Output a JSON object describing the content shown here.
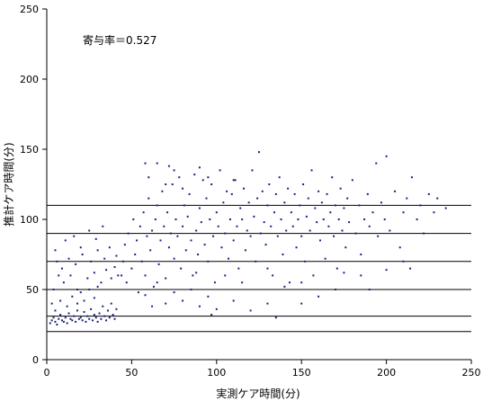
{
  "chart_data": {
    "type": "scatter",
    "title": "",
    "annotation": "寄与率＝0.527",
    "xlabel": "実測ケア時間(分)",
    "ylabel": "推計ケア時間(分)",
    "xlim": [
      0,
      250
    ],
    "ylim": [
      0,
      250
    ],
    "x_ticks": [
      0,
      50,
      100,
      150,
      200,
      250
    ],
    "y_ticks": [
      0,
      50,
      100,
      150,
      200,
      250
    ],
    "x_tick_labels": [
      "0",
      "50",
      "100",
      "150",
      "200",
      "250"
    ],
    "y_tick_labels": [
      "0",
      "50",
      "100",
      "150",
      "200",
      "250"
    ],
    "reference_lines_y": [
      20,
      31,
      50,
      70,
      90,
      110
    ],
    "grid": false,
    "legend": "none",
    "marker_color": "#1a237e",
    "series": [
      {
        "name": "",
        "points": [
          [
            2,
            26
          ],
          [
            3,
            28
          ],
          [
            4,
            30
          ],
          [
            5,
            27
          ],
          [
            6,
            25
          ],
          [
            7,
            29
          ],
          [
            8,
            32
          ],
          [
            9,
            28
          ],
          [
            10,
            27
          ],
          [
            11,
            30
          ],
          [
            12,
            26
          ],
          [
            13,
            33
          ],
          [
            14,
            29
          ],
          [
            15,
            28
          ],
          [
            16,
            31
          ],
          [
            17,
            27
          ],
          [
            18,
            35
          ],
          [
            19,
            29
          ],
          [
            20,
            30
          ],
          [
            21,
            28
          ],
          [
            22,
            34
          ],
          [
            23,
            27
          ],
          [
            24,
            31
          ],
          [
            25,
            29
          ],
          [
            26,
            36
          ],
          [
            27,
            28
          ],
          [
            28,
            32
          ],
          [
            29,
            30
          ],
          [
            30,
            27
          ],
          [
            31,
            33
          ],
          [
            32,
            29
          ],
          [
            33,
            38
          ],
          [
            34,
            31
          ],
          [
            35,
            28
          ],
          [
            36,
            35
          ],
          [
            37,
            30
          ],
          [
            38,
            40
          ],
          [
            39,
            32
          ],
          [
            40,
            29
          ],
          [
            41,
            36
          ],
          [
            5,
            35
          ],
          [
            8,
            42
          ],
          [
            12,
            38
          ],
          [
            15,
            45
          ],
          [
            18,
            40
          ],
          [
            20,
            48
          ],
          [
            22,
            42
          ],
          [
            25,
            50
          ],
          [
            28,
            44
          ],
          [
            30,
            52
          ],
          [
            10,
            55
          ],
          [
            14,
            60
          ],
          [
            18,
            50
          ],
          [
            24,
            58
          ],
          [
            28,
            62
          ],
          [
            32,
            55
          ],
          [
            35,
            64
          ],
          [
            38,
            58
          ],
          [
            40,
            66
          ],
          [
            42,
            60
          ],
          [
            6,
            70
          ],
          [
            9,
            65
          ],
          [
            13,
            72
          ],
          [
            17,
            68
          ],
          [
            21,
            75
          ],
          [
            26,
            70
          ],
          [
            30,
            78
          ],
          [
            34,
            72
          ],
          [
            37,
            80
          ],
          [
            41,
            74
          ],
          [
            3,
            40
          ],
          [
            4,
            50
          ],
          [
            5,
            78
          ],
          [
            7,
            60
          ],
          [
            11,
            85
          ],
          [
            16,
            88
          ],
          [
            20,
            80
          ],
          [
            25,
            92
          ],
          [
            29,
            86
          ],
          [
            33,
            95
          ],
          [
            44,
            60
          ],
          [
            45,
            70
          ],
          [
            46,
            82
          ],
          [
            47,
            55
          ],
          [
            48,
            90
          ],
          [
            50,
            65
          ],
          [
            51,
            100
          ],
          [
            52,
            75
          ],
          [
            53,
            85
          ],
          [
            54,
            48
          ],
          [
            55,
            95
          ],
          [
            56,
            70
          ],
          [
            57,
            105
          ],
          [
            58,
            60
          ],
          [
            59,
            88
          ],
          [
            60,
            115
          ],
          [
            61,
            78
          ],
          [
            62,
            92
          ],
          [
            63,
            52
          ],
          [
            64,
            100
          ],
          [
            65,
            110
          ],
          [
            66,
            68
          ],
          [
            67,
            85
          ],
          [
            68,
            120
          ],
          [
            69,
            95
          ],
          [
            70,
            58
          ],
          [
            71,
            105
          ],
          [
            72,
            80
          ],
          [
            73,
            90
          ],
          [
            74,
            125
          ],
          [
            75,
            72
          ],
          [
            76,
            100
          ],
          [
            77,
            88
          ],
          [
            78,
            130
          ],
          [
            79,
            65
          ],
          [
            80,
            95
          ],
          [
            81,
            110
          ],
          [
            82,
            78
          ],
          [
            83,
            102
          ],
          [
            84,
            118
          ],
          [
            85,
            85
          ],
          [
            86,
            60
          ],
          [
            87,
            132
          ],
          [
            88,
            92
          ],
          [
            89,
            75
          ],
          [
            90,
            108
          ],
          [
            91,
            98
          ],
          [
            92,
            128
          ],
          [
            93,
            82
          ],
          [
            94,
            115
          ],
          [
            95,
            70
          ],
          [
            96,
            100
          ],
          [
            97,
            125
          ],
          [
            98,
            88
          ],
          [
            99,
            55
          ],
          [
            100,
            105
          ],
          [
            101,
            95
          ],
          [
            102,
            135
          ],
          [
            103,
            80
          ],
          [
            104,
            112
          ],
          [
            105,
            90
          ],
          [
            106,
            120
          ],
          [
            107,
            72
          ],
          [
            108,
            100
          ],
          [
            109,
            118
          ],
          [
            110,
            85
          ],
          [
            111,
            128
          ],
          [
            112,
            95
          ],
          [
            113,
            65
          ],
          [
            114,
            108
          ],
          [
            115,
            100
          ],
          [
            116,
            122
          ],
          [
            117,
            78
          ],
          [
            118,
            92
          ],
          [
            119,
            112
          ],
          [
            120,
            88
          ],
          [
            121,
            135
          ],
          [
            122,
            102
          ],
          [
            123,
            70
          ],
          [
            124,
            115
          ],
          [
            125,
            148
          ],
          [
            126,
            90
          ],
          [
            127,
            120
          ],
          [
            128,
            98
          ],
          [
            129,
            82
          ],
          [
            130,
            110
          ],
          [
            131,
            125
          ],
          [
            132,
            95
          ],
          [
            133,
            60
          ],
          [
            134,
            105
          ],
          [
            135,
            118
          ],
          [
            136,
            88
          ],
          [
            137,
            130
          ],
          [
            138,
            100
          ],
          [
            139,
            75
          ],
          [
            140,
            112
          ],
          [
            141,
            92
          ],
          [
            142,
            122
          ],
          [
            143,
            55
          ],
          [
            144,
            105
          ],
          [
            145,
            95
          ],
          [
            146,
            118
          ],
          [
            147,
            80
          ],
          [
            148,
            100
          ],
          [
            149,
            110
          ],
          [
            150,
            88
          ],
          [
            151,
            125
          ],
          [
            152,
            70
          ],
          [
            153,
            102
          ],
          [
            154,
            115
          ],
          [
            155,
            92
          ],
          [
            156,
            135
          ],
          [
            157,
            60
          ],
          [
            158,
            108
          ],
          [
            159,
            98
          ],
          [
            160,
            120
          ],
          [
            161,
            85
          ],
          [
            162,
            112
          ],
          [
            163,
            100
          ],
          [
            164,
            72
          ],
          [
            165,
            118
          ],
          [
            166,
            95
          ],
          [
            167,
            105
          ],
          [
            168,
            130
          ],
          [
            169,
            88
          ],
          [
            170,
            110
          ],
          [
            171,
            65
          ],
          [
            172,
            100
          ],
          [
            173,
            122
          ],
          [
            174,
            92
          ],
          [
            175,
            108
          ],
          [
            176,
            80
          ],
          [
            177,
            115
          ],
          [
            178,
            98
          ],
          [
            180,
            128
          ],
          [
            182,
            90
          ],
          [
            184,
            110
          ],
          [
            185,
            75
          ],
          [
            187,
            100
          ],
          [
            189,
            118
          ],
          [
            190,
            95
          ],
          [
            192,
            105
          ],
          [
            194,
            140
          ],
          [
            195,
            88
          ],
          [
            197,
            112
          ],
          [
            199,
            100
          ],
          [
            200,
            145
          ],
          [
            202,
            92
          ],
          [
            205,
            120
          ],
          [
            208,
            80
          ],
          [
            210,
            105
          ],
          [
            212,
            115
          ],
          [
            214,
            65
          ],
          [
            215,
            130
          ],
          [
            218,
            100
          ],
          [
            220,
            110
          ],
          [
            222,
            90
          ],
          [
            225,
            118
          ],
          [
            228,
            105
          ],
          [
            230,
            115
          ],
          [
            235,
            108
          ],
          [
            200,
            64
          ],
          [
            185,
            60
          ],
          [
            170,
            50
          ],
          [
            160,
            45
          ],
          [
            150,
            40
          ],
          [
            140,
            52
          ],
          [
            130,
            40
          ],
          [
            120,
            35
          ],
          [
            110,
            42
          ],
          [
            100,
            36
          ],
          [
            95,
            45
          ],
          [
            90,
            38
          ],
          [
            85,
            50
          ],
          [
            80,
            42
          ],
          [
            75,
            48
          ],
          [
            70,
            40
          ],
          [
            65,
            55
          ],
          [
            62,
            38
          ],
          [
            58,
            46
          ],
          [
            135,
            30
          ],
          [
            150,
            55
          ],
          [
            175,
            62
          ],
          [
            190,
            50
          ],
          [
            210,
            70
          ],
          [
            130,
            65
          ],
          [
            115,
            55
          ],
          [
            105,
            60
          ],
          [
            97,
            32
          ],
          [
            88,
            62
          ],
          [
            60,
            130
          ],
          [
            65,
            140
          ],
          [
            70,
            125
          ],
          [
            75,
            135
          ],
          [
            80,
            122
          ],
          [
            58,
            140
          ],
          [
            72,
            138
          ],
          [
            90,
            137
          ],
          [
            95,
            130
          ],
          [
            110,
            128
          ]
        ]
      }
    ]
  }
}
